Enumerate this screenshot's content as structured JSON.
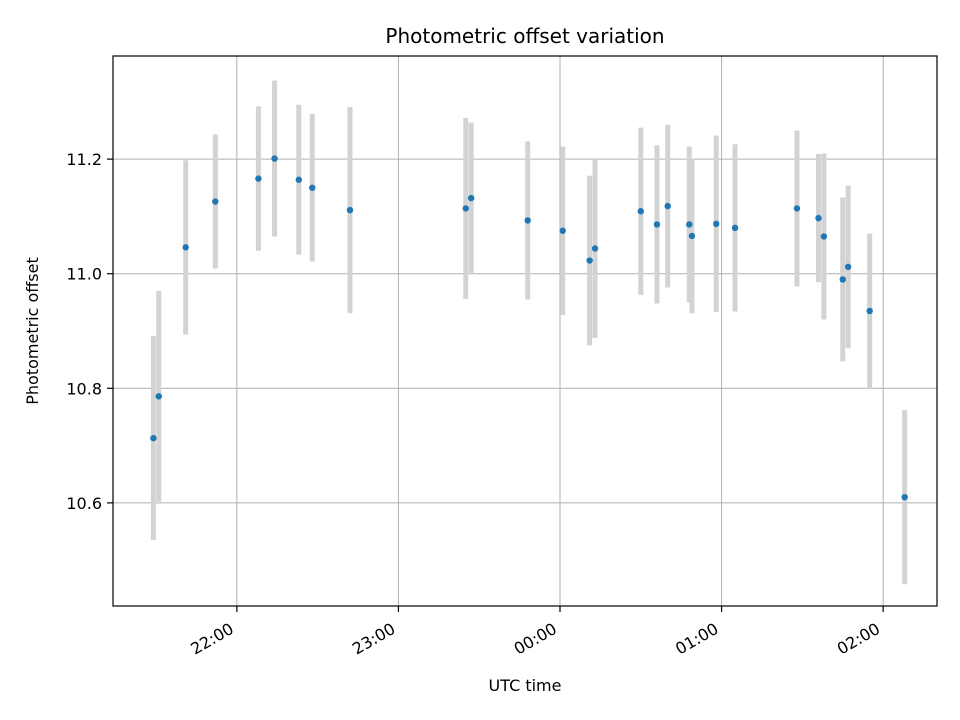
{
  "chart_data": {
    "type": "scatter",
    "title": "Photometric offset variation",
    "xlabel": "UTC time",
    "ylabel": "Photometric offset",
    "x_axis_type": "time",
    "xlim": [
      "21:14",
      "02:20"
    ],
    "ylim": [
      10.42,
      11.38
    ],
    "xticks": [
      "22:00",
      "23:00",
      "00:00",
      "01:00",
      "02:00"
    ],
    "yticks": [
      10.6,
      10.8,
      11.0,
      11.2
    ],
    "grid": true,
    "marker_color": "#1f77b4",
    "errorbar_color": "#d3d3d3",
    "points": [
      {
        "t": "21:29",
        "y": 10.713,
        "err": 0.178
      },
      {
        "t": "21:31",
        "y": 10.786,
        "err": 0.184
      },
      {
        "t": "21:41",
        "y": 11.046,
        "err": 0.152
      },
      {
        "t": "21:52",
        "y": 11.126,
        "err": 0.117
      },
      {
        "t": "22:08",
        "y": 11.166,
        "err": 0.126
      },
      {
        "t": "22:14",
        "y": 11.201,
        "err": 0.136
      },
      {
        "t": "22:23",
        "y": 11.164,
        "err": 0.131
      },
      {
        "t": "22:28",
        "y": 11.15,
        "err": 0.129
      },
      {
        "t": "22:42",
        "y": 11.111,
        "err": 0.18
      },
      {
        "t": "23:25",
        "y": 11.114,
        "err": 0.158
      },
      {
        "t": "23:27",
        "y": 11.132,
        "err": 0.132
      },
      {
        "t": "23:48",
        "y": 11.093,
        "err": 0.138
      },
      {
        "t": "00:01",
        "y": 11.075,
        "err": 0.147
      },
      {
        "t": "00:11",
        "y": 11.023,
        "err": 0.148
      },
      {
        "t": "00:13",
        "y": 11.044,
        "err": 0.156
      },
      {
        "t": "00:30",
        "y": 11.109,
        "err": 0.146
      },
      {
        "t": "00:36",
        "y": 11.086,
        "err": 0.138
      },
      {
        "t": "00:40",
        "y": 11.118,
        "err": 0.142
      },
      {
        "t": "00:48",
        "y": 11.086,
        "err": 0.136
      },
      {
        "t": "00:49",
        "y": 11.066,
        "err": 0.135
      },
      {
        "t": "00:58",
        "y": 11.087,
        "err": 0.154
      },
      {
        "t": "01:05",
        "y": 11.08,
        "err": 0.146
      },
      {
        "t": "01:28",
        "y": 11.114,
        "err": 0.136
      },
      {
        "t": "01:36",
        "y": 11.097,
        "err": 0.112
      },
      {
        "t": "01:38",
        "y": 11.065,
        "err": 0.145
      },
      {
        "t": "01:45",
        "y": 10.99,
        "err": 0.143
      },
      {
        "t": "01:47",
        "y": 11.012,
        "err": 0.142
      },
      {
        "t": "01:55",
        "y": 10.935,
        "err": 0.135
      },
      {
        "t": "02:08",
        "y": 10.61,
        "err": 0.152
      }
    ]
  }
}
